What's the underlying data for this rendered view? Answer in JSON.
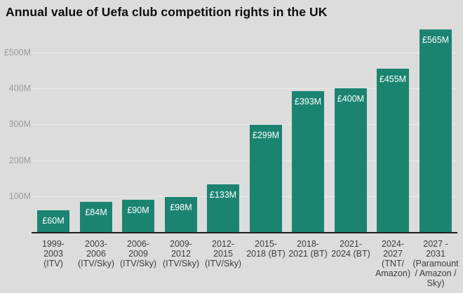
{
  "title": "Annual value of Uefa club competition rights in the UK",
  "colors": {
    "background": "#dcdcdc",
    "bar": "#1b8471",
    "title": "#0d0d0d",
    "axis_line": "#202020",
    "gridline": "#ebebeb",
    "y_tick": "#9c9c9c",
    "x_tick": "#3c3c3c",
    "value_label": "#ffffff"
  },
  "chart_data": {
    "type": "bar",
    "title": "Annual value of Uefa club competition rights in the UK",
    "categories": [
      "1999-2003 (ITV)",
      "2003-2006 (ITV/Sky)",
      "2006-2009 (ITV/Sky)",
      "2009-2012 (ITV/Sky)",
      "2012-2015 (ITV/Sky)",
      "2015-2018 (BT)",
      "2018-2021 (BT)",
      "2021-2024 (BT)",
      "2024-2027 (TNT/Amazon)",
      "2027-2031 (Paramount / Amazon / Sky)"
    ],
    "category_lines": [
      [
        "1999-",
        "2003",
        "(ITV)"
      ],
      [
        "2003-",
        "2006",
        "(ITV/Sky)"
      ],
      [
        "2006-",
        "2009",
        "(ITV/Sky)"
      ],
      [
        "2009-",
        "2012",
        "(ITV/Sky)"
      ],
      [
        "2012-",
        "2015",
        "(ITV/Sky)"
      ],
      [
        "2015-",
        "2018 (BT)"
      ],
      [
        "2018-",
        "2021 (BT)"
      ],
      [
        "2021-",
        "2024 (BT)"
      ],
      [
        "2024-",
        "2027",
        "(TNT/",
        "Amazon)"
      ],
      [
        "2027 -",
        "2031",
        "(Paramount",
        "/ Amazon /",
        "Sky)"
      ]
    ],
    "values": [
      60,
      84,
      90,
      98,
      133,
      299,
      393,
      400,
      455,
      565
    ],
    "value_labels": [
      "£60M",
      "£84M",
      "£90M",
      "£98M",
      "£133M",
      "£299M",
      "£393M",
      "£400M",
      "£455M",
      "£565M"
    ],
    "unit": "millions GBP",
    "y_ticks": [
      {
        "value": 500,
        "label": "£500M"
      },
      {
        "value": 400,
        "label": "400M"
      },
      {
        "value": 300,
        "label": "300M"
      },
      {
        "value": 200,
        "label": "200M"
      },
      {
        "value": 100,
        "label": "100M"
      }
    ],
    "ylim": [
      0,
      565
    ],
    "grid": true,
    "legend": "none"
  }
}
